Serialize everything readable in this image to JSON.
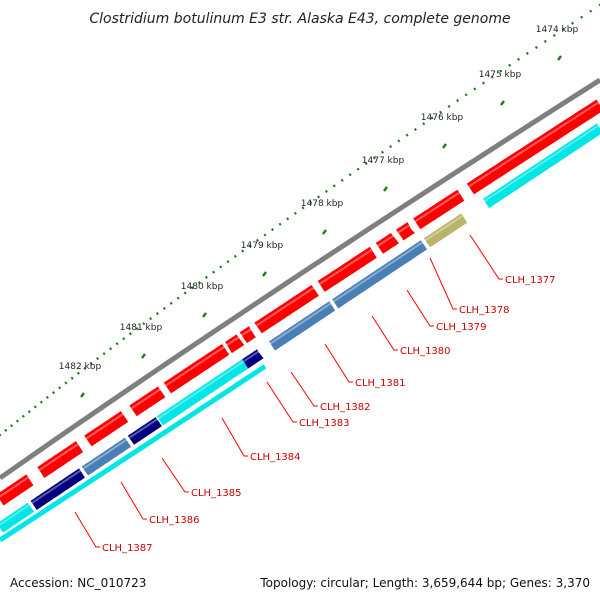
{
  "title": "Clostridium botulinum E3 str. Alaska E43, complete genome",
  "footer": {
    "accession": "Accession: NC_010723",
    "summary": "Topology: circular; Length: 3,659,644 bp; Genes: 3,370"
  },
  "colors": {
    "backbone": "#7f7f7f",
    "cds_forward": "#ff0000",
    "cds_reverse": "#00e5e5",
    "cog_blue": "#4a7fb5",
    "cog_navy": "#00007f",
    "cog_olive": "#b9b46a",
    "tick": "#1a7f1a",
    "label_line": "#ff0000"
  },
  "ticks": [
    {
      "label": "1474 kbp"
    },
    {
      "label": "1475 kbp"
    },
    {
      "label": "1476 kbp"
    },
    {
      "label": "1477 kbp"
    },
    {
      "label": "1478 kbp"
    },
    {
      "label": "1479 kbp"
    },
    {
      "label": "1480 kbp"
    },
    {
      "label": "1481 kbp"
    },
    {
      "label": "1482 kbp"
    }
  ],
  "genes": [
    {
      "label": "CLH_1377",
      "cog": "olive"
    },
    {
      "label": "CLH_1378",
      "cog": "blue"
    },
    {
      "label": "CLH_1379",
      "cog": "blue"
    },
    {
      "label": "CLH_1380",
      "cog": "blue"
    },
    {
      "label": "CLH_1381",
      "cog": "blue"
    },
    {
      "label": "CLH_1382",
      "cog": "navy"
    },
    {
      "label": "CLH_1383",
      "cog": "cyan"
    },
    {
      "label": "CLH_1384",
      "cog": "cyan"
    },
    {
      "label": "CLH_1385",
      "cog": "navy"
    },
    {
      "label": "CLH_1386",
      "cog": "blue"
    },
    {
      "label": "CLH_1387",
      "cog": "cyan"
    }
  ]
}
